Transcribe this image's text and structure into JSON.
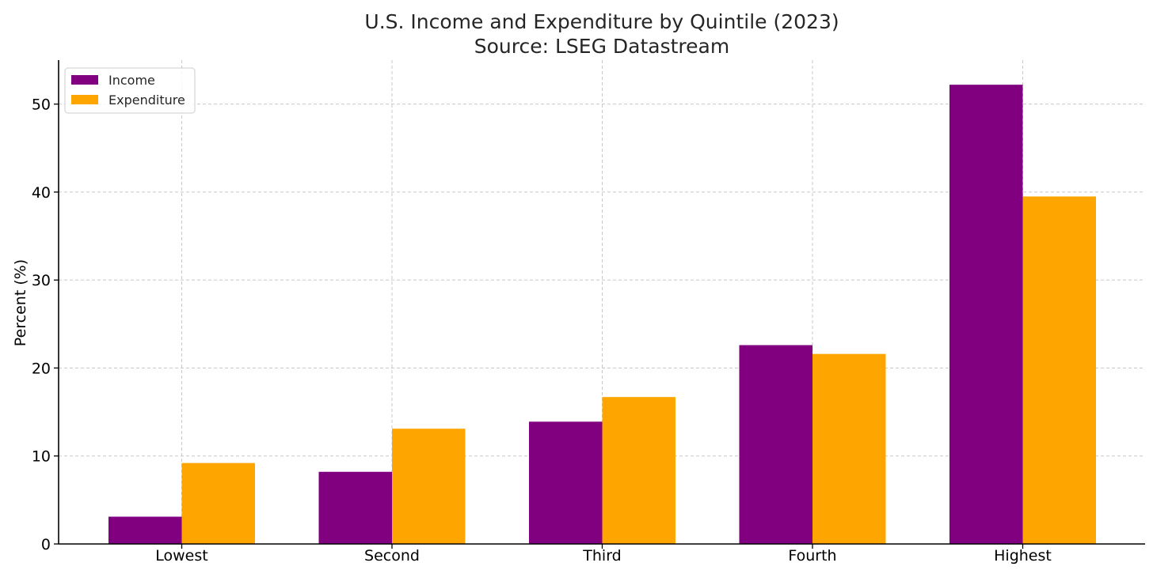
{
  "chart_data": {
    "type": "bar",
    "title": "U.S. Income and Expenditure by Quintile (2023)",
    "subtitle": "Source: LSEG Datastream",
    "xlabel": "",
    "ylabel": "Percent (%)",
    "categories": [
      "Lowest",
      "Second",
      "Third",
      "Fourth",
      "Highest"
    ],
    "series": [
      {
        "name": "Income",
        "color": "#800080",
        "values": [
          3.1,
          8.2,
          13.9,
          22.6,
          52.2
        ]
      },
      {
        "name": "Expenditure",
        "color": "#FFA500",
        "values": [
          9.2,
          13.1,
          16.7,
          21.6,
          39.5
        ]
      }
    ],
    "ylim": [
      0,
      55
    ],
    "yticks": [
      0,
      10,
      20,
      30,
      40,
      50
    ],
    "grid": true,
    "legend_position": "top-left"
  }
}
